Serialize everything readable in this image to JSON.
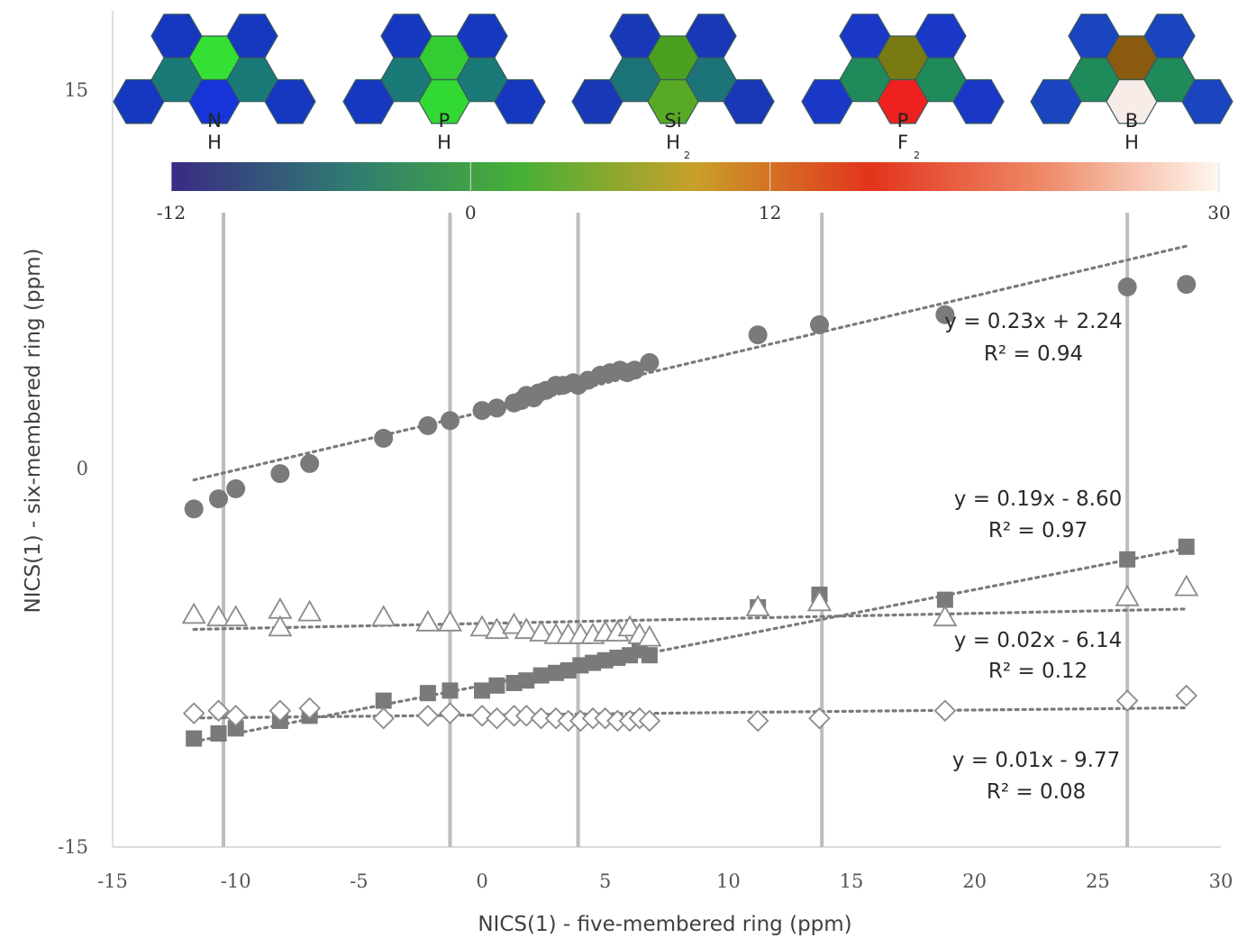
{
  "chart_data": {
    "type": "scatter",
    "xlabel": "NICS(1) - five-membered ring (ppm)",
    "ylabel": "NICS(1) - six-membered ring (ppm)",
    "xlim": [
      -15,
      30
    ],
    "ylim": [
      -15,
      15
    ],
    "xticks": [
      -15,
      -10,
      -5,
      0,
      5,
      10,
      15,
      20,
      25,
      30
    ],
    "yticks": [
      -15,
      0,
      15
    ],
    "grid": false,
    "reference_lines_x": [
      -10.5,
      -1.3,
      3.9,
      13.8,
      26.2
    ],
    "series": [
      {
        "marker": "filled-circle",
        "fit": {
          "slope": 0.23,
          "intercept": 2.24
        },
        "equation": "y = 0.23x + 2.24",
        "r2": "R² = 0.94",
        "x": [
          -11.7,
          -10.7,
          -10.0,
          -8.2,
          -7.0,
          -4.0,
          -2.2,
          -1.3,
          0.0,
          0.6,
          1.3,
          1.6,
          1.8,
          2.1,
          2.3,
          2.6,
          3.0,
          3.3,
          3.7,
          3.9,
          4.3,
          4.8,
          5.2,
          5.6,
          5.9,
          6.2,
          6.8,
          11.2,
          13.7,
          18.8,
          26.2,
          28.6
        ],
        "y": [
          -1.6,
          -1.2,
          -0.8,
          -0.2,
          0.2,
          1.2,
          1.7,
          1.9,
          2.3,
          2.4,
          2.6,
          2.7,
          2.9,
          2.8,
          3.0,
          3.1,
          3.3,
          3.3,
          3.4,
          3.3,
          3.5,
          3.7,
          3.8,
          3.9,
          3.8,
          3.9,
          4.2,
          5.3,
          5.7,
          6.1,
          7.2,
          7.3
        ]
      },
      {
        "marker": "filled-square",
        "fit": {
          "slope": 0.19,
          "intercept": -8.6
        },
        "equation": "y = 0.19x - 8.60",
        "r2": "R² = 0.97",
        "x": [
          -11.7,
          -10.7,
          -10.0,
          -8.2,
          -7.0,
          -4.0,
          -2.2,
          -1.3,
          0.0,
          0.6,
          1.3,
          1.8,
          2.4,
          3.0,
          3.5,
          4.0,
          4.5,
          5.0,
          5.5,
          6.0,
          6.4,
          6.8,
          11.2,
          13.7,
          18.8,
          26.2,
          28.6
        ],
        "y": [
          -10.7,
          -10.5,
          -10.3,
          -10.0,
          -9.8,
          -9.2,
          -8.9,
          -8.8,
          -8.8,
          -8.6,
          -8.5,
          -8.4,
          -8.2,
          -8.1,
          -8.0,
          -7.8,
          -7.7,
          -7.6,
          -7.5,
          -7.4,
          -7.2,
          -7.4,
          -5.5,
          -5.0,
          -5.2,
          -3.6,
          -3.1
        ]
      },
      {
        "marker": "open-triangle",
        "fit": {
          "slope": 0.02,
          "intercept": -6.14
        },
        "equation": "y = 0.02x - 6.14",
        "r2": "R² = 0.12",
        "x": [
          -11.7,
          -10.7,
          -10.0,
          -8.2,
          -8.2,
          -7.0,
          -4.0,
          -2.2,
          -1.3,
          0.0,
          0.6,
          1.3,
          1.8,
          2.4,
          3.0,
          3.5,
          4.0,
          4.5,
          5.0,
          5.5,
          6.0,
          6.4,
          6.8,
          11.2,
          13.7,
          18.8,
          26.2,
          28.6
        ],
        "y": [
          -5.8,
          -5.9,
          -5.9,
          -5.6,
          -6.3,
          -5.7,
          -5.9,
          -6.1,
          -6.1,
          -6.3,
          -6.4,
          -6.2,
          -6.4,
          -6.5,
          -6.6,
          -6.6,
          -6.6,
          -6.6,
          -6.5,
          -6.5,
          -6.3,
          -6.6,
          -6.7,
          -5.5,
          -5.3,
          -5.9,
          -5.1,
          -4.7
        ]
      },
      {
        "marker": "open-diamond",
        "fit": {
          "slope": 0.01,
          "intercept": -9.77
        },
        "equation": "y = 0.01x - 9.77",
        "r2": "R² = 0.08",
        "x": [
          -11.7,
          -10.7,
          -10.0,
          -8.2,
          -7.0,
          -4.0,
          -2.2,
          -1.3,
          0.0,
          0.6,
          1.3,
          1.8,
          2.4,
          3.0,
          3.5,
          4.0,
          4.5,
          5.0,
          5.5,
          6.0,
          6.4,
          6.8,
          11.2,
          13.7,
          18.8,
          26.2,
          28.6
        ],
        "y": [
          -9.7,
          -9.6,
          -9.8,
          -9.6,
          -9.5,
          -9.9,
          -9.8,
          -9.7,
          -9.8,
          -9.9,
          -9.8,
          -9.8,
          -9.9,
          -9.9,
          -10.0,
          -10.0,
          -9.9,
          -9.9,
          -10.0,
          -10.0,
          -9.9,
          -10.0,
          -10.0,
          -9.9,
          -9.6,
          -9.2,
          -9.0
        ]
      }
    ]
  },
  "colorbar": {
    "stops": [
      "#3b2a84",
      "#2f7a72",
      "#47b035",
      "#c9a02a",
      "#e2341c",
      "#ee8a68",
      "#fff8f0"
    ],
    "tick_values": [
      -12,
      0,
      12,
      30
    ],
    "tick_labels": [
      "-12",
      "0",
      "12",
      "30"
    ]
  },
  "molecules": [
    {
      "atom": "N",
      "sub": "H",
      "sub_index": "",
      "center": "#33e033",
      "bottom": "#1535d8",
      "outer": "#1638c0",
      "inner": "#1a7a78"
    },
    {
      "atom": "P",
      "sub": "H",
      "sub_index": "",
      "center": "#33cc33",
      "bottom": "#33d933",
      "outer": "#1638c0",
      "inner": "#1a7a78"
    },
    {
      "atom": "Si",
      "sub": "H",
      "sub_index": "2",
      "center": "#4aa020",
      "bottom": "#58aa24",
      "outer": "#1838b8",
      "inner": "#1c7478"
    },
    {
      "atom": "P",
      "sub": "F",
      "sub_index": "2",
      "center": "#7a7a12",
      "bottom": "#ee2020",
      "outer": "#1a38c8",
      "inner": "#1f8a5a"
    },
    {
      "atom": "B",
      "sub": "H",
      "sub_index": "",
      "center": "#8a5a10",
      "bottom": "#f8ece8",
      "outer": "#1a44c0",
      "inner": "#1f8a5a"
    }
  ]
}
